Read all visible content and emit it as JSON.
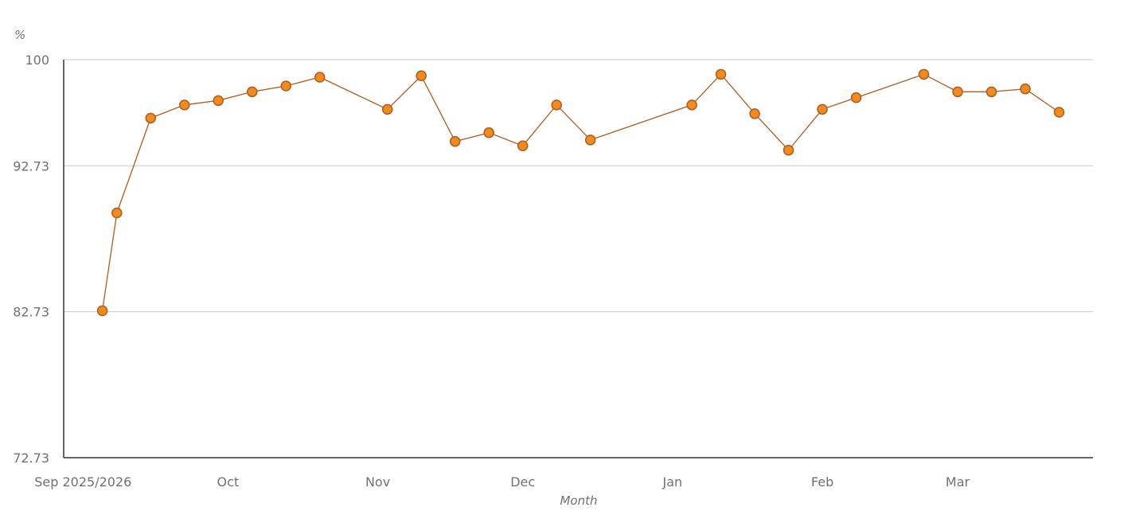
{
  "chart_data": {
    "type": "line",
    "title": "",
    "xlabel": "Month",
    "ylabel": "%",
    "ylim": [
      72.73,
      100
    ],
    "y_ticks": [
      {
        "value": 100,
        "label": "100"
      },
      {
        "value": 92.73,
        "label": "92.73"
      },
      {
        "value": 82.73,
        "label": "82.73"
      },
      {
        "value": 72.73,
        "label": "72.73"
      }
    ],
    "xlim": [
      "2025-08-28",
      "2026-03-29"
    ],
    "x_ticks": [
      {
        "date": "2025-09-01",
        "label": "Sep 2025/2026"
      },
      {
        "date": "2025-10-01",
        "label": "Oct"
      },
      {
        "date": "2025-11-01",
        "label": "Nov"
      },
      {
        "date": "2025-12-01",
        "label": "Dec"
      },
      {
        "date": "2026-01-01",
        "label": "Jan"
      },
      {
        "date": "2026-02-01",
        "label": "Feb"
      },
      {
        "date": "2026-03-01",
        "label": "Mar"
      }
    ],
    "grid": "horizontal",
    "colors": {
      "line": "#b05a1e",
      "marker_fill": "#f28b1e",
      "marker_stroke": "#b05a1e",
      "grid": "#c8c8c8",
      "axis": "#333333"
    },
    "series": [
      {
        "points": [
          {
            "x": "2025-09-05",
            "y": 82.8
          },
          {
            "x": "2025-09-08",
            "y": 89.5
          },
          {
            "x": "2025-09-15",
            "y": 96.0
          },
          {
            "x": "2025-09-22",
            "y": 96.9
          },
          {
            "x": "2025-09-29",
            "y": 97.2
          },
          {
            "x": "2025-10-06",
            "y": 97.8
          },
          {
            "x": "2025-10-13",
            "y": 98.2
          },
          {
            "x": "2025-10-20",
            "y": 98.8
          },
          {
            "x": "2025-11-03",
            "y": 96.6
          },
          {
            "x": "2025-11-10",
            "y": 98.9
          },
          {
            "x": "2025-11-17",
            "y": 94.4
          },
          {
            "x": "2025-11-24",
            "y": 95.0
          },
          {
            "x": "2025-12-01",
            "y": 94.1
          },
          {
            "x": "2025-12-08",
            "y": 96.9
          },
          {
            "x": "2025-12-15",
            "y": 94.5
          },
          {
            "x": "2026-01-05",
            "y": 96.9
          },
          {
            "x": "2026-01-11",
            "y": 99.0
          },
          {
            "x": "2026-01-18",
            "y": 96.3
          },
          {
            "x": "2026-01-25",
            "y": 93.8
          },
          {
            "x": "2026-02-01",
            "y": 96.6
          },
          {
            "x": "2026-02-08",
            "y": 97.4
          },
          {
            "x": "2026-02-22",
            "y": 99.0
          },
          {
            "x": "2026-03-01",
            "y": 97.8
          },
          {
            "x": "2026-03-08",
            "y": 97.8
          },
          {
            "x": "2026-03-15",
            "y": 98.0
          },
          {
            "x": "2026-03-22",
            "y": 96.4
          }
        ]
      }
    ]
  }
}
